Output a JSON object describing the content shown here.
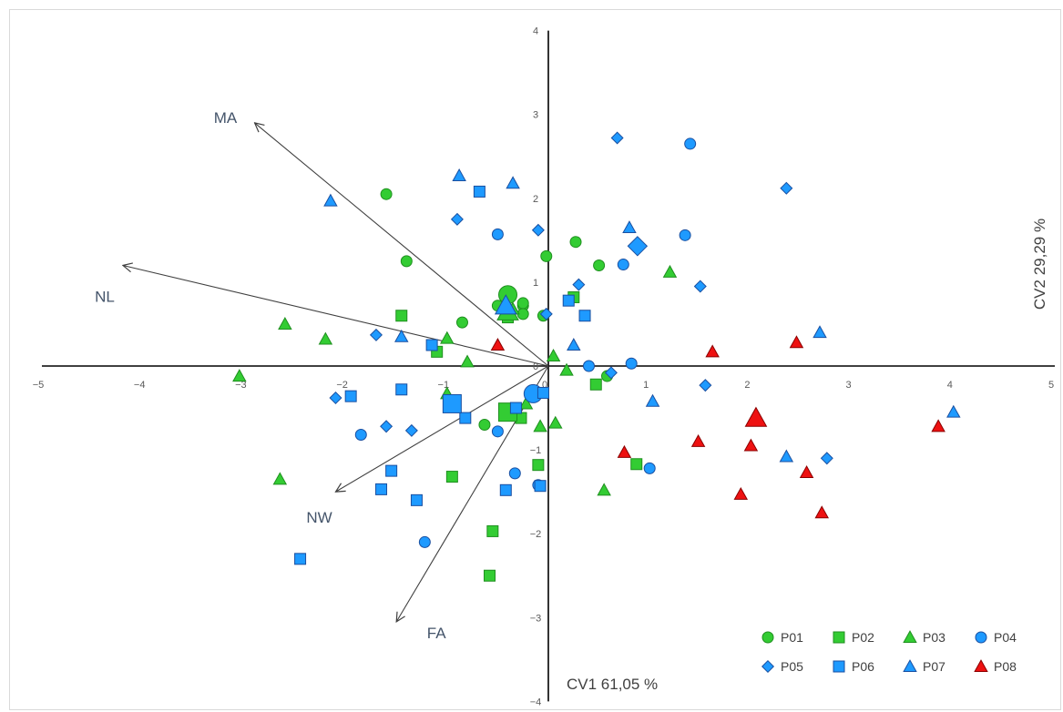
{
  "chart_data": {
    "type": "scatter",
    "title": "",
    "xlabel": "CV1 61,05 %",
    "ylabel": "CV2 29,29 %",
    "xlim": [
      -5,
      5
    ],
    "ylim": [
      -4,
      4
    ],
    "x_ticks": [
      -5,
      -4,
      -3,
      -2,
      -1,
      0,
      1,
      2,
      3,
      4,
      5
    ],
    "y_ticks": [
      -4,
      -3,
      -2,
      -1,
      0,
      1,
      2,
      3,
      4
    ],
    "grid": false,
    "legend_position": "bottom-right",
    "vectors": [
      {
        "label": "MA",
        "x": -2.9,
        "y": 2.9
      },
      {
        "label": "NL",
        "x": -4.2,
        "y": 1.2
      },
      {
        "label": "NW",
        "x": -2.1,
        "y": -1.5
      },
      {
        "label": "FA",
        "x": -1.5,
        "y": -3.05
      }
    ],
    "series": [
      {
        "name": "P01",
        "marker": "circle",
        "color": "#33cc33",
        "stroke": "#1f8f1f",
        "points": [
          [
            -1.6,
            2.05
          ],
          [
            -1.4,
            1.25
          ],
          [
            -0.85,
            0.52
          ],
          [
            -0.5,
            0.72
          ],
          [
            -0.25,
            0.72
          ],
          [
            -0.25,
            0.62
          ],
          [
            -0.25,
            0.75
          ],
          [
            -0.05,
            0.6
          ],
          [
            -0.02,
            1.31
          ],
          [
            0.27,
            1.48
          ],
          [
            0.5,
            1.2
          ],
          [
            -0.63,
            -0.7
          ],
          [
            0.58,
            -0.12
          ]
        ],
        "centroid": [
          -0.4,
          0.85
        ]
      },
      {
        "name": "P02",
        "marker": "square",
        "color": "#33cc33",
        "stroke": "#1f8f1f",
        "points": [
          [
            -1.45,
            0.6
          ],
          [
            -1.1,
            0.17
          ],
          [
            -0.4,
            0.58
          ],
          [
            0.25,
            0.82
          ],
          [
            -0.95,
            -1.32
          ],
          [
            -0.35,
            -0.55
          ],
          [
            -0.27,
            -0.62
          ],
          [
            -0.1,
            -1.18
          ],
          [
            -0.55,
            -1.97
          ],
          [
            -0.58,
            -2.5
          ],
          [
            0.47,
            -0.22
          ],
          [
            0.87,
            -1.17
          ]
        ],
        "centroid": [
          -0.4,
          -0.55
        ]
      },
      {
        "name": "P03",
        "marker": "triangle",
        "color": "#33cc33",
        "stroke": "#1f8f1f",
        "points": [
          [
            -2.6,
            0.5
          ],
          [
            -2.2,
            0.32
          ],
          [
            -3.05,
            -0.12
          ],
          [
            -2.65,
            -1.35
          ],
          [
            -1.0,
            0.33
          ],
          [
            -0.8,
            0.05
          ],
          [
            -1.0,
            -0.33
          ],
          [
            -0.95,
            -0.45
          ],
          [
            -0.35,
            0.68
          ],
          [
            -0.22,
            -0.45
          ],
          [
            -0.08,
            -0.72
          ],
          [
            0.05,
            0.12
          ],
          [
            0.18,
            -0.05
          ],
          [
            0.07,
            -0.68
          ],
          [
            0.55,
            -1.48
          ],
          [
            1.2,
            1.12
          ]
        ],
        "centroid": [
          -0.4,
          0.65
        ]
      },
      {
        "name": "P04",
        "marker": "circle",
        "color": "#1e9aff",
        "stroke": "#1a4fa0",
        "points": [
          [
            -1.85,
            -0.82
          ],
          [
            -1.22,
            -2.1
          ],
          [
            -0.5,
            1.57
          ],
          [
            -0.5,
            -0.78
          ],
          [
            -0.33,
            -1.28
          ],
          [
            -0.1,
            -1.42
          ],
          [
            0.4,
            0.0
          ],
          [
            0.74,
            1.21
          ],
          [
            0.82,
            0.03
          ],
          [
            1.0,
            -1.22
          ],
          [
            1.35,
            1.56
          ],
          [
            1.4,
            2.65
          ]
        ],
        "centroid": [
          -0.15,
          -0.33
        ]
      },
      {
        "name": "P05",
        "marker": "diamond",
        "color": "#1e9aff",
        "stroke": "#1a4fa0",
        "points": [
          [
            -2.1,
            -0.38
          ],
          [
            -1.7,
            0.37
          ],
          [
            -1.6,
            -0.72
          ],
          [
            -1.35,
            -0.77
          ],
          [
            -0.9,
            1.75
          ],
          [
            -0.95,
            -0.42
          ],
          [
            -0.1,
            1.62
          ],
          [
            -0.02,
            0.62
          ],
          [
            0.3,
            0.97
          ],
          [
            0.62,
            -0.08
          ],
          [
            0.68,
            2.72
          ],
          [
            1.5,
            0.95
          ],
          [
            1.55,
            -0.23
          ],
          [
            2.35,
            2.12
          ],
          [
            2.75,
            -1.1
          ]
        ],
        "centroid": [
          0.88,
          1.43
        ]
      },
      {
        "name": "P06",
        "marker": "square",
        "color": "#1e9aff",
        "stroke": "#1a4fa0",
        "points": [
          [
            -2.45,
            -2.3
          ],
          [
            -1.95,
            -0.36
          ],
          [
            -1.65,
            -1.47
          ],
          [
            -1.55,
            -1.25
          ],
          [
            -1.45,
            -0.28
          ],
          [
            -1.3,
            -1.6
          ],
          [
            -1.15,
            0.25
          ],
          [
            -0.82,
            -0.62
          ],
          [
            -0.68,
            2.08
          ],
          [
            -0.42,
            -1.48
          ],
          [
            -0.32,
            -0.5
          ],
          [
            -0.05,
            -0.32
          ],
          [
            -0.08,
            -1.43
          ],
          [
            0.2,
            0.78
          ],
          [
            0.36,
            0.6
          ]
        ],
        "centroid": [
          -0.95,
          -0.45
        ]
      },
      {
        "name": "P07",
        "marker": "triangle",
        "color": "#1e9aff",
        "stroke": "#1a4fa0",
        "points": [
          [
            -2.15,
            1.97
          ],
          [
            -1.45,
            0.35
          ],
          [
            -0.88,
            2.27
          ],
          [
            -0.35,
            2.18
          ],
          [
            0.25,
            0.25
          ],
          [
            0.8,
            1.65
          ],
          [
            1.03,
            -0.42
          ],
          [
            2.35,
            -1.08
          ],
          [
            2.68,
            0.4
          ],
          [
            4.0,
            -0.55
          ]
        ],
        "centroid": [
          -0.42,
          0.72
        ]
      },
      {
        "name": "P08",
        "marker": "triangle",
        "color": "#ee1111",
        "stroke": "#8a0000",
        "points": [
          [
            -0.5,
            0.25
          ],
          [
            0.75,
            -1.03
          ],
          [
            1.62,
            0.17
          ],
          [
            1.48,
            -0.9
          ],
          [
            1.9,
            -1.53
          ],
          [
            2.0,
            -0.95
          ],
          [
            2.45,
            0.28
          ],
          [
            2.55,
            -1.27
          ],
          [
            2.7,
            -1.75
          ],
          [
            3.85,
            -0.72
          ]
        ],
        "centroid": [
          2.05,
          -0.62
        ]
      }
    ]
  }
}
